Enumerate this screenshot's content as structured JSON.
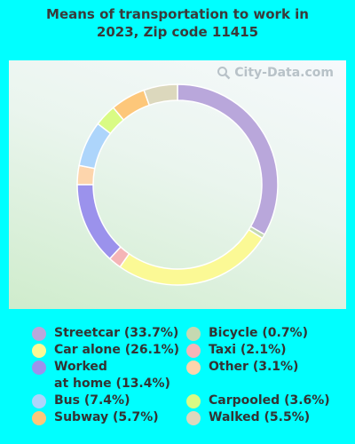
{
  "title": "Means of transportation to work in\n2023, Zip code 11415",
  "watermark": "City-Data.com",
  "chart_data": {
    "type": "pie",
    "donut": true,
    "slices": [
      {
        "label": "Streetcar",
        "value": 33.7,
        "legend": "Streetcar (33.7%)",
        "color": "#b9a7db"
      },
      {
        "label": "Bicycle",
        "value": 0.7,
        "legend": "Bicycle (0.7%)",
        "color": "#c5d9b1"
      },
      {
        "label": "Car alone",
        "value": 26.1,
        "legend": "Car alone (26.1%)",
        "color": "#fbf995"
      },
      {
        "label": "Taxi",
        "value": 2.1,
        "legend": "Taxi (2.1%)",
        "color": "#f5b5b7"
      },
      {
        "label": "Worked at home",
        "value": 13.4,
        "legend": "Worked\nat home (13.4%)",
        "color": "#9b92ec"
      },
      {
        "label": "Other",
        "value": 3.1,
        "legend": "Other (3.1%)",
        "color": "#fdd5ac"
      },
      {
        "label": "Bus",
        "value": 7.4,
        "legend": "Bus (7.4%)",
        "color": "#add5fb"
      },
      {
        "label": "Carpooled",
        "value": 3.6,
        "legend": "Carpooled (3.6%)",
        "color": "#d9fb84"
      },
      {
        "label": "Subway",
        "value": 5.7,
        "legend": "Subway (5.7%)",
        "color": "#fdc77a"
      },
      {
        "label": "Walked",
        "value": 5.5,
        "legend": "Walked (5.5%)",
        "color": "#dcd8bd"
      }
    ]
  },
  "legend_layout": [
    [
      "Streetcar",
      "Bicycle"
    ],
    [
      "Car alone",
      "Taxi"
    ],
    [
      "Worked at home",
      "Other"
    ],
    [
      "Bus",
      "Carpooled"
    ],
    [
      "Subway",
      "Walked"
    ]
  ]
}
